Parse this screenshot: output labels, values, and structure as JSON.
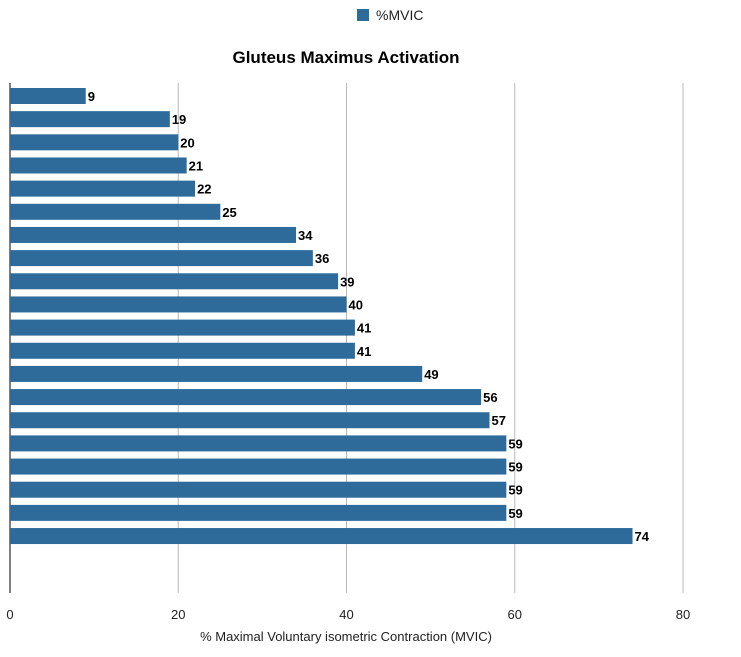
{
  "chart_data": {
    "type": "bar",
    "orientation": "horizontal",
    "title": "Gluteus Maximus Activation",
    "xlabel": "% Maximal Voluntary isometric Contraction (MVIC)",
    "ylabel": "",
    "xlim": [
      0,
      80
    ],
    "xticks": [
      0,
      20,
      40,
      60,
      80
    ],
    "grid": true,
    "legend_position": "top-center",
    "series": [
      {
        "name": "%MVIC",
        "color": "#2e6a9a",
        "values": [
          9,
          19,
          20,
          21,
          22,
          25,
          34,
          36,
          39,
          40,
          41,
          41,
          49,
          56,
          57,
          59,
          59,
          59,
          59,
          74
        ]
      }
    ]
  }
}
